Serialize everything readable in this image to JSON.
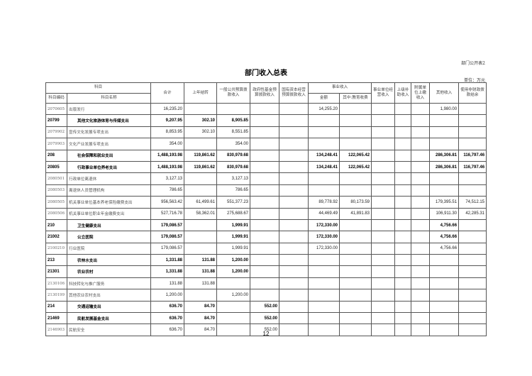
{
  "doc": {
    "tag": "部门公开表2",
    "title": "部门收入总表",
    "unit": "单位：万元",
    "page": "12"
  },
  "headers": {
    "subject": "科目",
    "code": "科目编码",
    "name": "科目名称",
    "total": "合计",
    "carry": "上年结转",
    "general": "一般公共预算拨款收入",
    "fund": "政府性基金预算拨款收入",
    "capital": "国有资本经营预算拨款收入",
    "business": "事业收入",
    "amount": "金额",
    "edu": "其中:教育收费",
    "operate": "事业单位经营收入",
    "upper": "上级补助收入",
    "affil": "附属单位上缴收入",
    "other": "其他收入",
    "nonfiscal": "使用非财政拨款结余"
  },
  "rows": [
    {
      "bold": false,
      "code": "2070605",
      "name": "出版发行",
      "v": [
        "16,235.20",
        "",
        "",
        "",
        "",
        "14,255.20",
        "",
        "",
        "",
        "",
        "1,980.00",
        ""
      ]
    },
    {
      "bold": true,
      "code": "20799",
      "name": "其他文化旅游体育与传媒支出",
      "v": [
        "9,207.95",
        "302.10",
        "8,905.85",
        "",
        "",
        "",
        "",
        "",
        "",
        "",
        "",
        ""
      ]
    },
    {
      "bold": false,
      "code": "2079902",
      "name": "宣传文化发展专项支出",
      "v": [
        "8,853.95",
        "302.10",
        "8,551.85",
        "",
        "",
        "",
        "",
        "",
        "",
        "",
        "",
        ""
      ]
    },
    {
      "bold": false,
      "code": "2079903",
      "name": "文化产业发展专项支出",
      "v": [
        "354.00",
        "",
        "354.00",
        "",
        "",
        "",
        "",
        "",
        "",
        "",
        "",
        ""
      ]
    },
    {
      "bold": true,
      "code": "208",
      "name": "社会保障和就业支出",
      "v": [
        "1,488,193.98",
        "119,861.62",
        "830,979.68",
        "",
        "",
        "134,248.41",
        "122,065.42",
        "",
        "",
        "",
        "286,306.81",
        "116,797.46"
      ]
    },
    {
      "bold": true,
      "code": "20805",
      "name": "行政事业单位养老支出",
      "v": [
        "1,488,193.98",
        "119,861.62",
        "830,979.68",
        "",
        "",
        "134,248.41",
        "122,065.42",
        "",
        "",
        "",
        "286,306.81",
        "116,797.46"
      ]
    },
    {
      "bold": false,
      "code": "2080501",
      "name": "行政单位离退休",
      "v": [
        "3,127.13",
        "",
        "3,127.13",
        "",
        "",
        "",
        "",
        "",
        "",
        "",
        "",
        ""
      ]
    },
    {
      "bold": false,
      "code": "2080503",
      "name": "离退休人员管理机构",
      "v": [
        "786.65",
        "",
        "786.65",
        "",
        "",
        "",
        "",
        "",
        "",
        "",
        "",
        ""
      ]
    },
    {
      "bold": false,
      "code": "2080505",
      "name": "机关事业单位基本养老保险缴费支出",
      "v": [
        "956,563.42",
        "61,499.61",
        "551,377.23",
        "",
        "",
        "89,778.92",
        "80,173.59",
        "",
        "",
        "",
        "179,395.51",
        "74,512.15"
      ]
    },
    {
      "bold": false,
      "code": "2080506",
      "name": "机关事业单位职业年金缴费支出",
      "v": [
        "527,716.78",
        "58,362.01",
        "275,688.67",
        "",
        "",
        "44,469.49",
        "41,891.83",
        "",
        "",
        "",
        "106,911.30",
        "42,285.31"
      ]
    },
    {
      "bold": true,
      "code": "210",
      "name": "卫生健康支出",
      "v": [
        "179,086.57",
        "",
        "1,999.91",
        "",
        "",
        "172,330.00",
        "",
        "",
        "",
        "",
        "4,756.66",
        ""
      ]
    },
    {
      "bold": true,
      "code": "21002",
      "name": "公立医院",
      "v": [
        "179,086.57",
        "",
        "1,999.91",
        "",
        "",
        "172,330.00",
        "",
        "",
        "",
        "",
        "4,756.66",
        ""
      ]
    },
    {
      "bold": false,
      "code": "2100210",
      "name": "行业医院",
      "v": [
        "179,086.57",
        "",
        "1,999.91",
        "",
        "",
        "172,330.00",
        "",
        "",
        "",
        "",
        "4,756.66",
        ""
      ]
    },
    {
      "bold": true,
      "code": "213",
      "name": "农林水支出",
      "v": [
        "1,331.88",
        "131.88",
        "1,200.00",
        "",
        "",
        "",
        "",
        "",
        "",
        "",
        "",
        ""
      ]
    },
    {
      "bold": true,
      "code": "21301",
      "name": "农业农村",
      "v": [
        "1,331.88",
        "131.88",
        "1,200.00",
        "",
        "",
        "",
        "",
        "",
        "",
        "",
        "",
        ""
      ]
    },
    {
      "bold": false,
      "code": "2130106",
      "name": "科技转化与推广服务",
      "v": [
        "131.88",
        "131.88",
        "",
        "",
        "",
        "",
        "",
        "",
        "",
        "",
        "",
        ""
      ]
    },
    {
      "bold": false,
      "code": "2130199",
      "name": "其他农业农村支出",
      "v": [
        "1,200.00",
        "",
        "1,200.00",
        "",
        "",
        "",
        "",
        "",
        "",
        "",
        "",
        ""
      ]
    },
    {
      "bold": true,
      "code": "214",
      "name": "交通运输支出",
      "v": [
        "636.70",
        "84.70",
        "",
        "552.00",
        "",
        "",
        "",
        "",
        "",
        "",
        "",
        ""
      ]
    },
    {
      "bold": true,
      "code": "21469",
      "name": "民航发展基金支出",
      "v": [
        "636.70",
        "84.70",
        "",
        "552.00",
        "",
        "",
        "",
        "",
        "",
        "",
        "",
        ""
      ]
    },
    {
      "bold": false,
      "code": "2146903",
      "name": "民航安全",
      "v": [
        "636.70",
        "84.70",
        "",
        "552.00",
        "",
        "",
        "",
        "",
        "",
        "",
        "",
        ""
      ]
    }
  ]
}
